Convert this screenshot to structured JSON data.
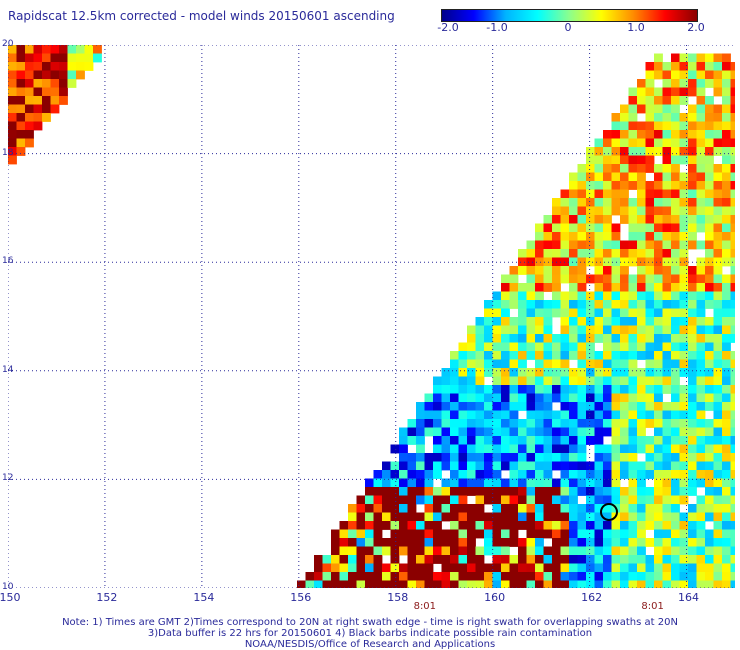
{
  "title": "Rapidscat 12.5km corrected - model winds 20150601 ascending",
  "colorbar": {
    "labels": [
      "-2.0",
      "-1.0",
      "0",
      "1.0",
      "2.0"
    ],
    "min": -2.0,
    "max": 2.0,
    "colors": [
      "#00008b",
      "#0000ff",
      "#00b4ff",
      "#00ffff",
      "#8cff8c",
      "#ffff00",
      "#ff8c00",
      "#ff0000",
      "#8b0000"
    ]
  },
  "map": {
    "lon_range": [
      150,
      165
    ],
    "lat_range": [
      10,
      20
    ],
    "x_ticks": [
      "150",
      "152",
      "154",
      "156",
      "158",
      "160",
      "162",
      "164"
    ],
    "y_ticks": [
      "20",
      "18",
      "16",
      "14",
      "12",
      "10"
    ],
    "grid": true,
    "swath_times": [
      {
        "label": "8:01",
        "lon": 158.6
      },
      {
        "label": "8:01",
        "lon": 163.3
      }
    ],
    "cyclone_marker": {
      "lon": 162.4,
      "lat": 11.4
    }
  },
  "notes": [
    "Note: 1) Times are GMT 2)Times correspond to 20N at right swath edge - time is right swath for overlapping swaths at 20N",
    "3)Data buffer is 22 hrs for 20150601 4) Black barbs indicate possible rain contamination",
    "NOAA/NESDIS/Office of Research and Applications"
  ]
}
